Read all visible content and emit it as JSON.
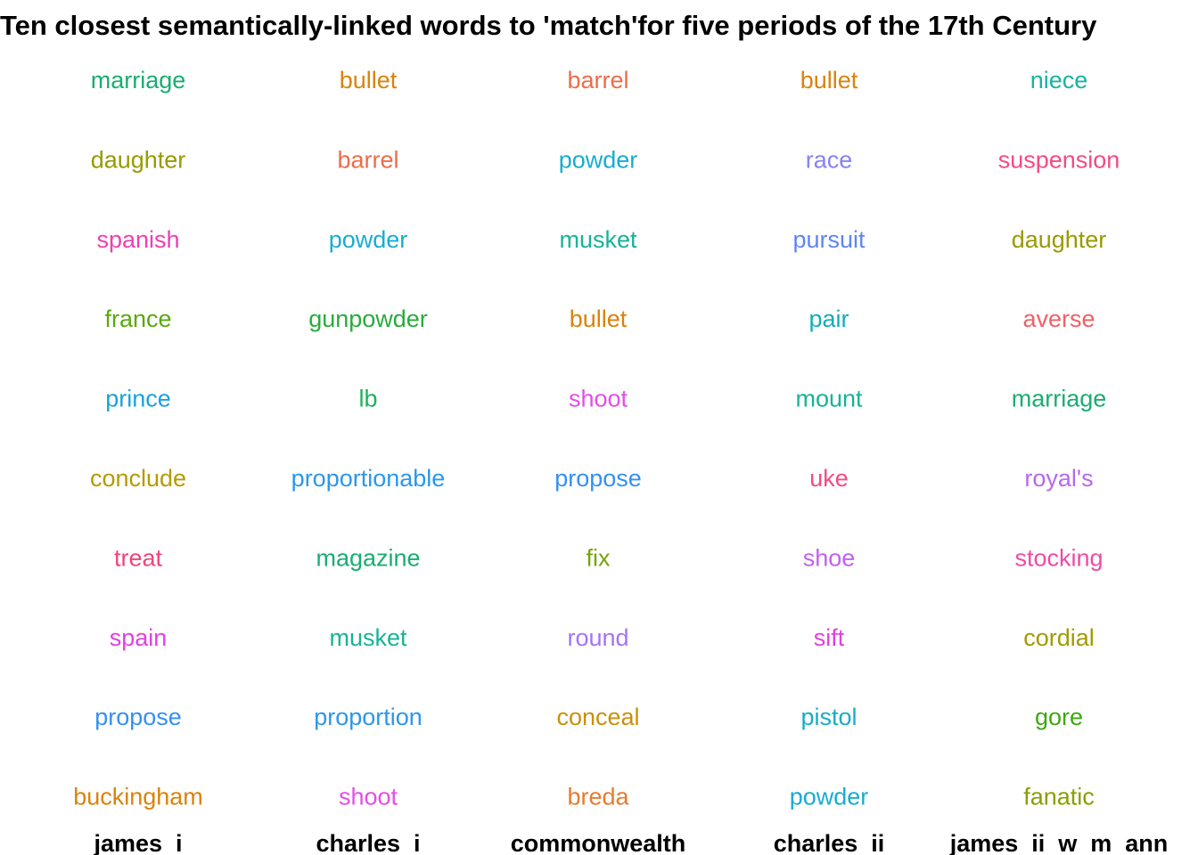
{
  "chart_data": {
    "type": "table",
    "title": "Ten closest semantically-linked words to 'match'for five periods of the 17th Century",
    "columns": [
      {
        "period": "james  i",
        "words": [
          {
            "word": "marriage",
            "color": "#1aad72"
          },
          {
            "word": "daughter",
            "color": "#999a00"
          },
          {
            "word": "spanish",
            "color": "#ef3fb3"
          },
          {
            "word": "france",
            "color": "#59a90e"
          },
          {
            "word": "prince",
            "color": "#1ba1de"
          },
          {
            "word": "conclude",
            "color": "#b59a00"
          },
          {
            "word": "treat",
            "color": "#f0437e"
          },
          {
            "word": "spain",
            "color": "#e23fe0"
          },
          {
            "word": "propose",
            "color": "#3490f3"
          },
          {
            "word": "buckingham",
            "color": "#d9830c"
          }
        ]
      },
      {
        "period": "charles  i",
        "words": [
          {
            "word": "bullet",
            "color": "#d9830c"
          },
          {
            "word": "barrel",
            "color": "#ec6d49"
          },
          {
            "word": "powder",
            "color": "#18acd2"
          },
          {
            "word": "gunpowder",
            "color": "#2aaa3c"
          },
          {
            "word": "lb",
            "color": "#1eb25a"
          },
          {
            "word": "proportionable",
            "color": "#2c97ea"
          },
          {
            "word": "magazine",
            "color": "#1aad72"
          },
          {
            "word": "musket",
            "color": "#17b397"
          },
          {
            "word": "proportion",
            "color": "#2c97ea"
          },
          {
            "word": "shoot",
            "color": "#e34ee9"
          }
        ]
      },
      {
        "period": "commonwealth",
        "words": [
          {
            "word": "barrel",
            "color": "#ec6d49"
          },
          {
            "word": "powder",
            "color": "#18acd2"
          },
          {
            "word": "musket",
            "color": "#17b397"
          },
          {
            "word": "bullet",
            "color": "#d9830c"
          },
          {
            "word": "shoot",
            "color": "#e34ee9"
          },
          {
            "word": "propose",
            "color": "#3490f3"
          },
          {
            "word": "fix",
            "color": "#79a10b"
          },
          {
            "word": "round",
            "color": "#a474f6"
          },
          {
            "word": "conceal",
            "color": "#c8910a"
          },
          {
            "word": "breda",
            "color": "#e77b2d"
          }
        ]
      },
      {
        "period": "charles  ii",
        "words": [
          {
            "word": "bullet",
            "color": "#d9830c"
          },
          {
            "word": "race",
            "color": "#8683f1"
          },
          {
            "word": "pursuit",
            "color": "#5e85f4"
          },
          {
            "word": "pair",
            "color": "#12adb8"
          },
          {
            "word": "mount",
            "color": "#17b397"
          },
          {
            "word": "uke",
            "color": "#f24b85"
          },
          {
            "word": "shoe",
            "color": "#c45ff0"
          },
          {
            "word": "sift",
            "color": "#e23fe0"
          },
          {
            "word": "pistol",
            "color": "#18acc6"
          },
          {
            "word": "powder",
            "color": "#18acd2"
          }
        ]
      },
      {
        "period": "james  ii  w  m  ann",
        "words": [
          {
            "word": "niece",
            "color": "#17b3a3"
          },
          {
            "word": "suspension",
            "color": "#f24b85"
          },
          {
            "word": "daughter",
            "color": "#999a00"
          },
          {
            "word": "averse",
            "color": "#ee6168"
          },
          {
            "word": "marriage",
            "color": "#1aad72"
          },
          {
            "word": "royal's",
            "color": "#b469ee"
          },
          {
            "word": "stocking",
            "color": "#f04aa6"
          },
          {
            "word": "cordial",
            "color": "#a29a00"
          },
          {
            "word": "gore",
            "color": "#3ca90e"
          },
          {
            "word": "fanatic",
            "color": "#8c9d00"
          }
        ]
      }
    ]
  }
}
